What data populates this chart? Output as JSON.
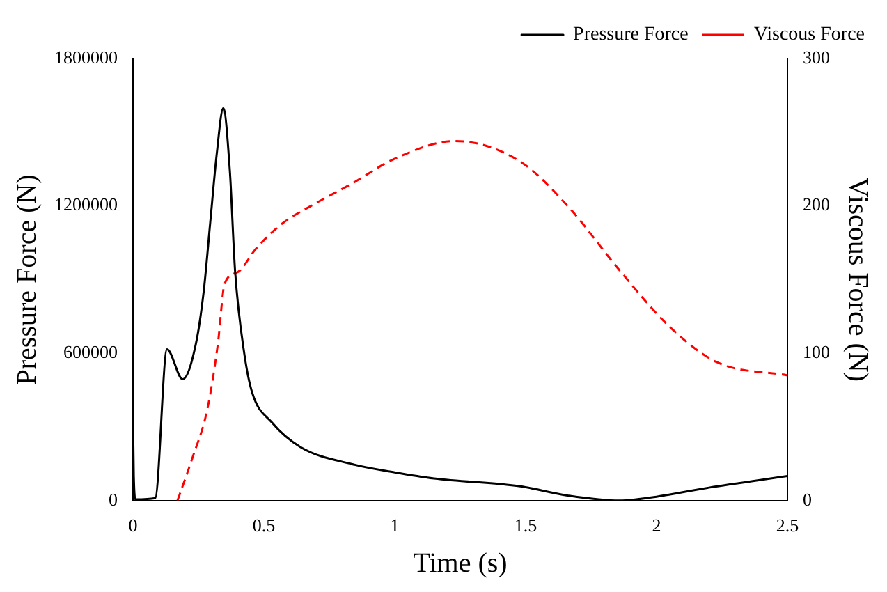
{
  "chart_data": {
    "type": "line",
    "xlabel": "Time (s)",
    "ylabel": "Pressure Force (N)",
    "y2label": "Viscous Force (N)",
    "xlim": [
      0,
      2.5
    ],
    "xticks": [
      0,
      0.5,
      1,
      1.5,
      2,
      2.5
    ],
    "ylim": [
      0,
      1800000
    ],
    "yticks": [
      0,
      600000,
      1200000,
      1800000
    ],
    "y2lim": [
      0,
      300
    ],
    "y2ticks": [
      0,
      100,
      200,
      300
    ],
    "grid": false,
    "legend": "top right",
    "marker": "none",
    "series": [
      {
        "name": "Pressure Force",
        "color": "#000000",
        "line_style": "solid",
        "x": [
          0,
          0.003,
          0.01,
          0.085,
          0.13,
          0.19,
          0.24,
          0.27,
          0.295,
          0.32,
          0.345,
          0.37,
          0.39,
          0.425,
          0.455,
          0.53,
          0.64,
          0.835,
          1.0,
          1.15,
          1.48,
          1.66,
          1.86,
          2.0,
          2.2,
          2.5
        ],
        "values": [
          350000,
          100000,
          5000,
          10000,
          616000,
          494000,
          637000,
          850000,
          1131000,
          1412000,
          1598000,
          1343000,
          935000,
          600000,
          441000,
          319000,
          218000,
          149000,
          115000,
          90000,
          58000,
          21000,
          0,
          16000,
          53000,
          100000
        ]
      },
      {
        "name": "Viscous Force",
        "color": "#ff0000",
        "line_style": "dashed",
        "axis": "y2",
        "x": [
          0.17,
          0.227,
          0.284,
          0.324,
          0.35,
          0.4,
          0.47,
          0.57,
          0.68,
          0.835,
          1.0,
          1.23,
          1.48,
          1.66,
          1.86,
          2.05,
          2.23,
          2.5
        ],
        "values": [
          0,
          29,
          62,
          106,
          147,
          155,
          171,
          188,
          200,
          215,
          232,
          244,
          230,
          200,
          156,
          118,
          94,
          85
        ]
      }
    ]
  }
}
